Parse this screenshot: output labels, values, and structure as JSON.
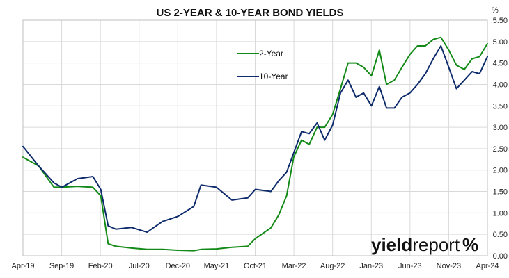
{
  "chart_data": {
    "type": "line",
    "title": "US 2-YEAR & 10-YEAR BOND YIELDS",
    "ylabel": "%",
    "xlabel": "",
    "ylim": [
      0.0,
      5.5
    ],
    "yticks": [
      "0.00",
      "0.50",
      "1.00",
      "1.50",
      "2.00",
      "2.50",
      "3.00",
      "3.50",
      "4.00",
      "4.50",
      "5.00",
      "5.50"
    ],
    "x_ticks": [
      "Apr-19",
      "Sep-19",
      "Feb-20",
      "Jul-20",
      "Dec-20",
      "May-21",
      "Oct-21",
      "Mar-22",
      "Aug-22",
      "Jan-23",
      "Jun-23",
      "Nov-23",
      "Apr-24"
    ],
    "grid": true,
    "legend_position": "top-center",
    "x": [
      "2019-04-01",
      "2019-06-01",
      "2019-08-01",
      "2019-09-01",
      "2019-11-01",
      "2020-01-01",
      "2020-02-01",
      "2020-03-01",
      "2020-04-01",
      "2020-06-01",
      "2020-08-01",
      "2020-10-01",
      "2020-12-01",
      "2021-02-01",
      "2021-03-01",
      "2021-05-01",
      "2021-07-01",
      "2021-09-01",
      "2021-10-01",
      "2021-12-01",
      "2022-01-01",
      "2022-02-01",
      "2022-03-01",
      "2022-04-01",
      "2022-05-01",
      "2022-06-01",
      "2022-07-01",
      "2022-08-01",
      "2022-09-01",
      "2022-10-01",
      "2022-11-01",
      "2022-12-01",
      "2023-01-01",
      "2023-02-01",
      "2023-03-01",
      "2023-04-01",
      "2023-05-01",
      "2023-06-01",
      "2023-07-01",
      "2023-08-01",
      "2023-09-01",
      "2023-10-01",
      "2023-11-01",
      "2023-12-01",
      "2024-01-01",
      "2024-02-01",
      "2024-03-01",
      "2024-04-01"
    ],
    "series": [
      {
        "name": "2-Year",
        "color": "#138a17",
        "values": [
          2.3,
          2.1,
          1.6,
          1.6,
          1.62,
          1.6,
          1.4,
          0.28,
          0.22,
          0.18,
          0.15,
          0.15,
          0.13,
          0.12,
          0.15,
          0.16,
          0.2,
          0.22,
          0.4,
          0.65,
          0.95,
          1.4,
          2.3,
          2.7,
          2.6,
          3.0,
          3.0,
          3.3,
          3.9,
          4.5,
          4.5,
          4.4,
          4.2,
          4.8,
          4.0,
          4.1,
          4.4,
          4.7,
          4.9,
          4.9,
          5.05,
          5.1,
          4.8,
          4.45,
          4.35,
          4.6,
          4.65,
          4.95
        ]
      },
      {
        "name": "10-Year",
        "color": "#0d2b6b",
        "values": [
          2.55,
          2.1,
          1.7,
          1.6,
          1.8,
          1.85,
          1.55,
          0.7,
          0.62,
          0.66,
          0.55,
          0.8,
          0.92,
          1.15,
          1.65,
          1.6,
          1.3,
          1.35,
          1.55,
          1.5,
          1.75,
          1.95,
          2.4,
          2.9,
          2.85,
          3.1,
          2.7,
          3.05,
          3.8,
          4.1,
          3.7,
          3.8,
          3.5,
          3.95,
          3.45,
          3.45,
          3.7,
          3.8,
          4.0,
          4.25,
          4.6,
          4.9,
          4.4,
          3.9,
          4.1,
          4.3,
          4.25,
          4.65
        ]
      }
    ],
    "brand": {
      "text_bold": "yield",
      "text_light": "report",
      "symbol": "%",
      "symbol_colors": [
        "#111111",
        "#cc1a1a"
      ]
    }
  }
}
